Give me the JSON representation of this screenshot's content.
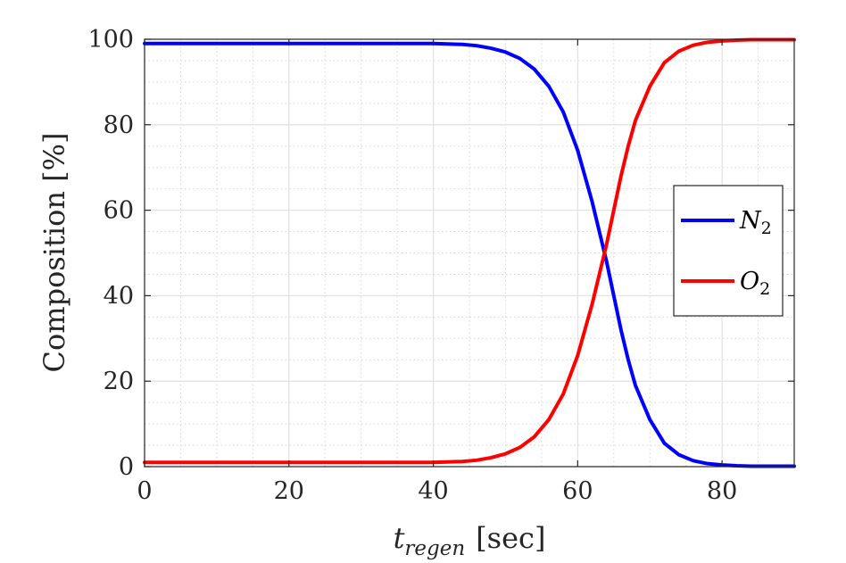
{
  "chart_data": {
    "type": "line",
    "xlabel": {
      "main": "t",
      "sub": "regen",
      "unit": "[sec]"
    },
    "ylabel": "Composition [%]",
    "xlim": [
      0,
      90
    ],
    "ylim": [
      0,
      100
    ],
    "xticks": [
      0,
      20,
      40,
      60,
      80
    ],
    "yticks": [
      0,
      20,
      40,
      60,
      80,
      100
    ],
    "grid": true,
    "minor_grid": true,
    "legend_position": "right",
    "series": [
      {
        "name": "N",
        "name_sub": "2",
        "color": "#0000ff",
        "x": [
          0,
          10,
          20,
          30,
          40,
          44,
          46,
          48,
          50,
          52,
          54,
          56,
          58,
          60,
          62,
          64,
          65,
          66,
          67,
          68,
          70,
          72,
          74,
          76,
          78,
          80,
          82,
          84,
          86,
          88,
          90
        ],
        "y": [
          99,
          99,
          99,
          99,
          99,
          98.8,
          98.5,
          97.9,
          97,
          95.5,
          93,
          89,
          83,
          74,
          62,
          48,
          40,
          32,
          25,
          19,
          11,
          5.5,
          2.8,
          1.4,
          0.7,
          0.4,
          0.2,
          0.1,
          0.1,
          0.1,
          0.1
        ]
      },
      {
        "name": "O",
        "name_sub": "2",
        "color": "#ff0000",
        "x": [
          0,
          10,
          20,
          30,
          40,
          44,
          46,
          48,
          50,
          52,
          54,
          56,
          58,
          60,
          62,
          64,
          65,
          66,
          67,
          68,
          70,
          72,
          74,
          76,
          78,
          80,
          82,
          84,
          86,
          88,
          90
        ],
        "y": [
          1,
          1,
          1,
          1,
          1,
          1.2,
          1.5,
          2.1,
          3,
          4.5,
          7,
          11,
          17,
          26,
          38,
          52,
          60,
          68,
          75,
          81,
          89,
          94.5,
          97.2,
          98.6,
          99.3,
          99.6,
          99.8,
          99.9,
          99.9,
          99.9,
          99.9
        ]
      }
    ]
  }
}
